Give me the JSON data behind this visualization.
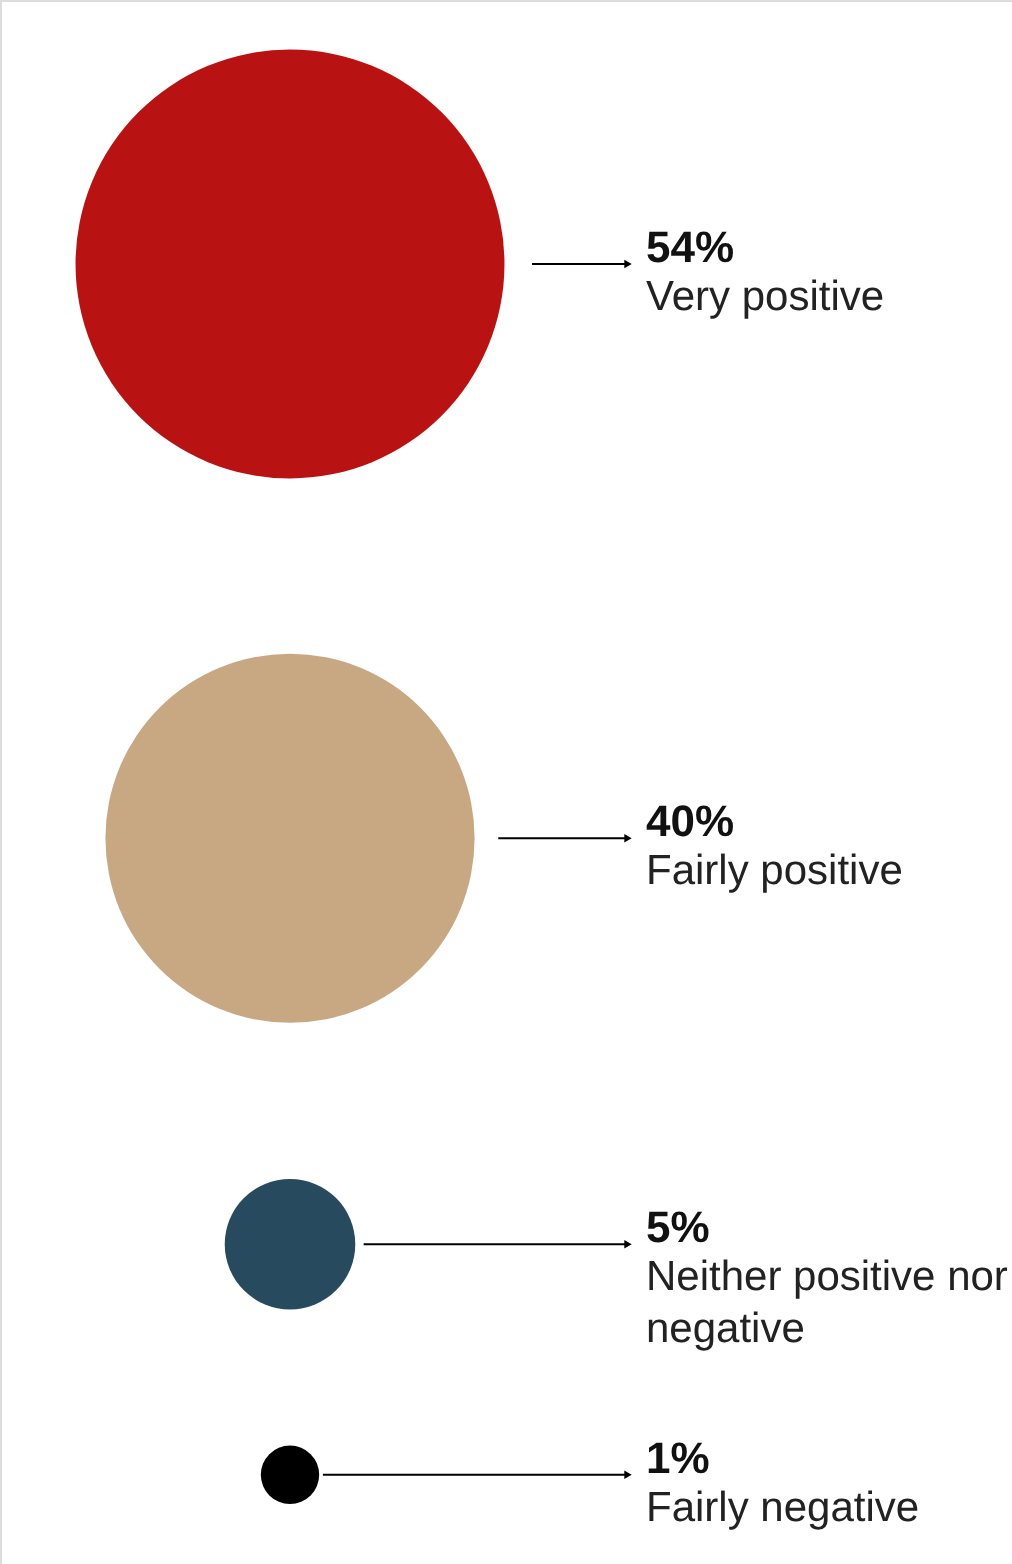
{
  "chart_data": {
    "type": "other",
    "categories": [
      "Very positive",
      "Fairly positive",
      "Neither positive nor negative",
      "Fairly negative"
    ],
    "values": [
      54,
      40,
      5,
      1
    ],
    "value_labels": [
      "54%",
      "40%",
      "5%",
      "1%"
    ],
    "colors": [
      "#b81212",
      "#c8a783",
      "#284a5e",
      "#000000"
    ]
  }
}
